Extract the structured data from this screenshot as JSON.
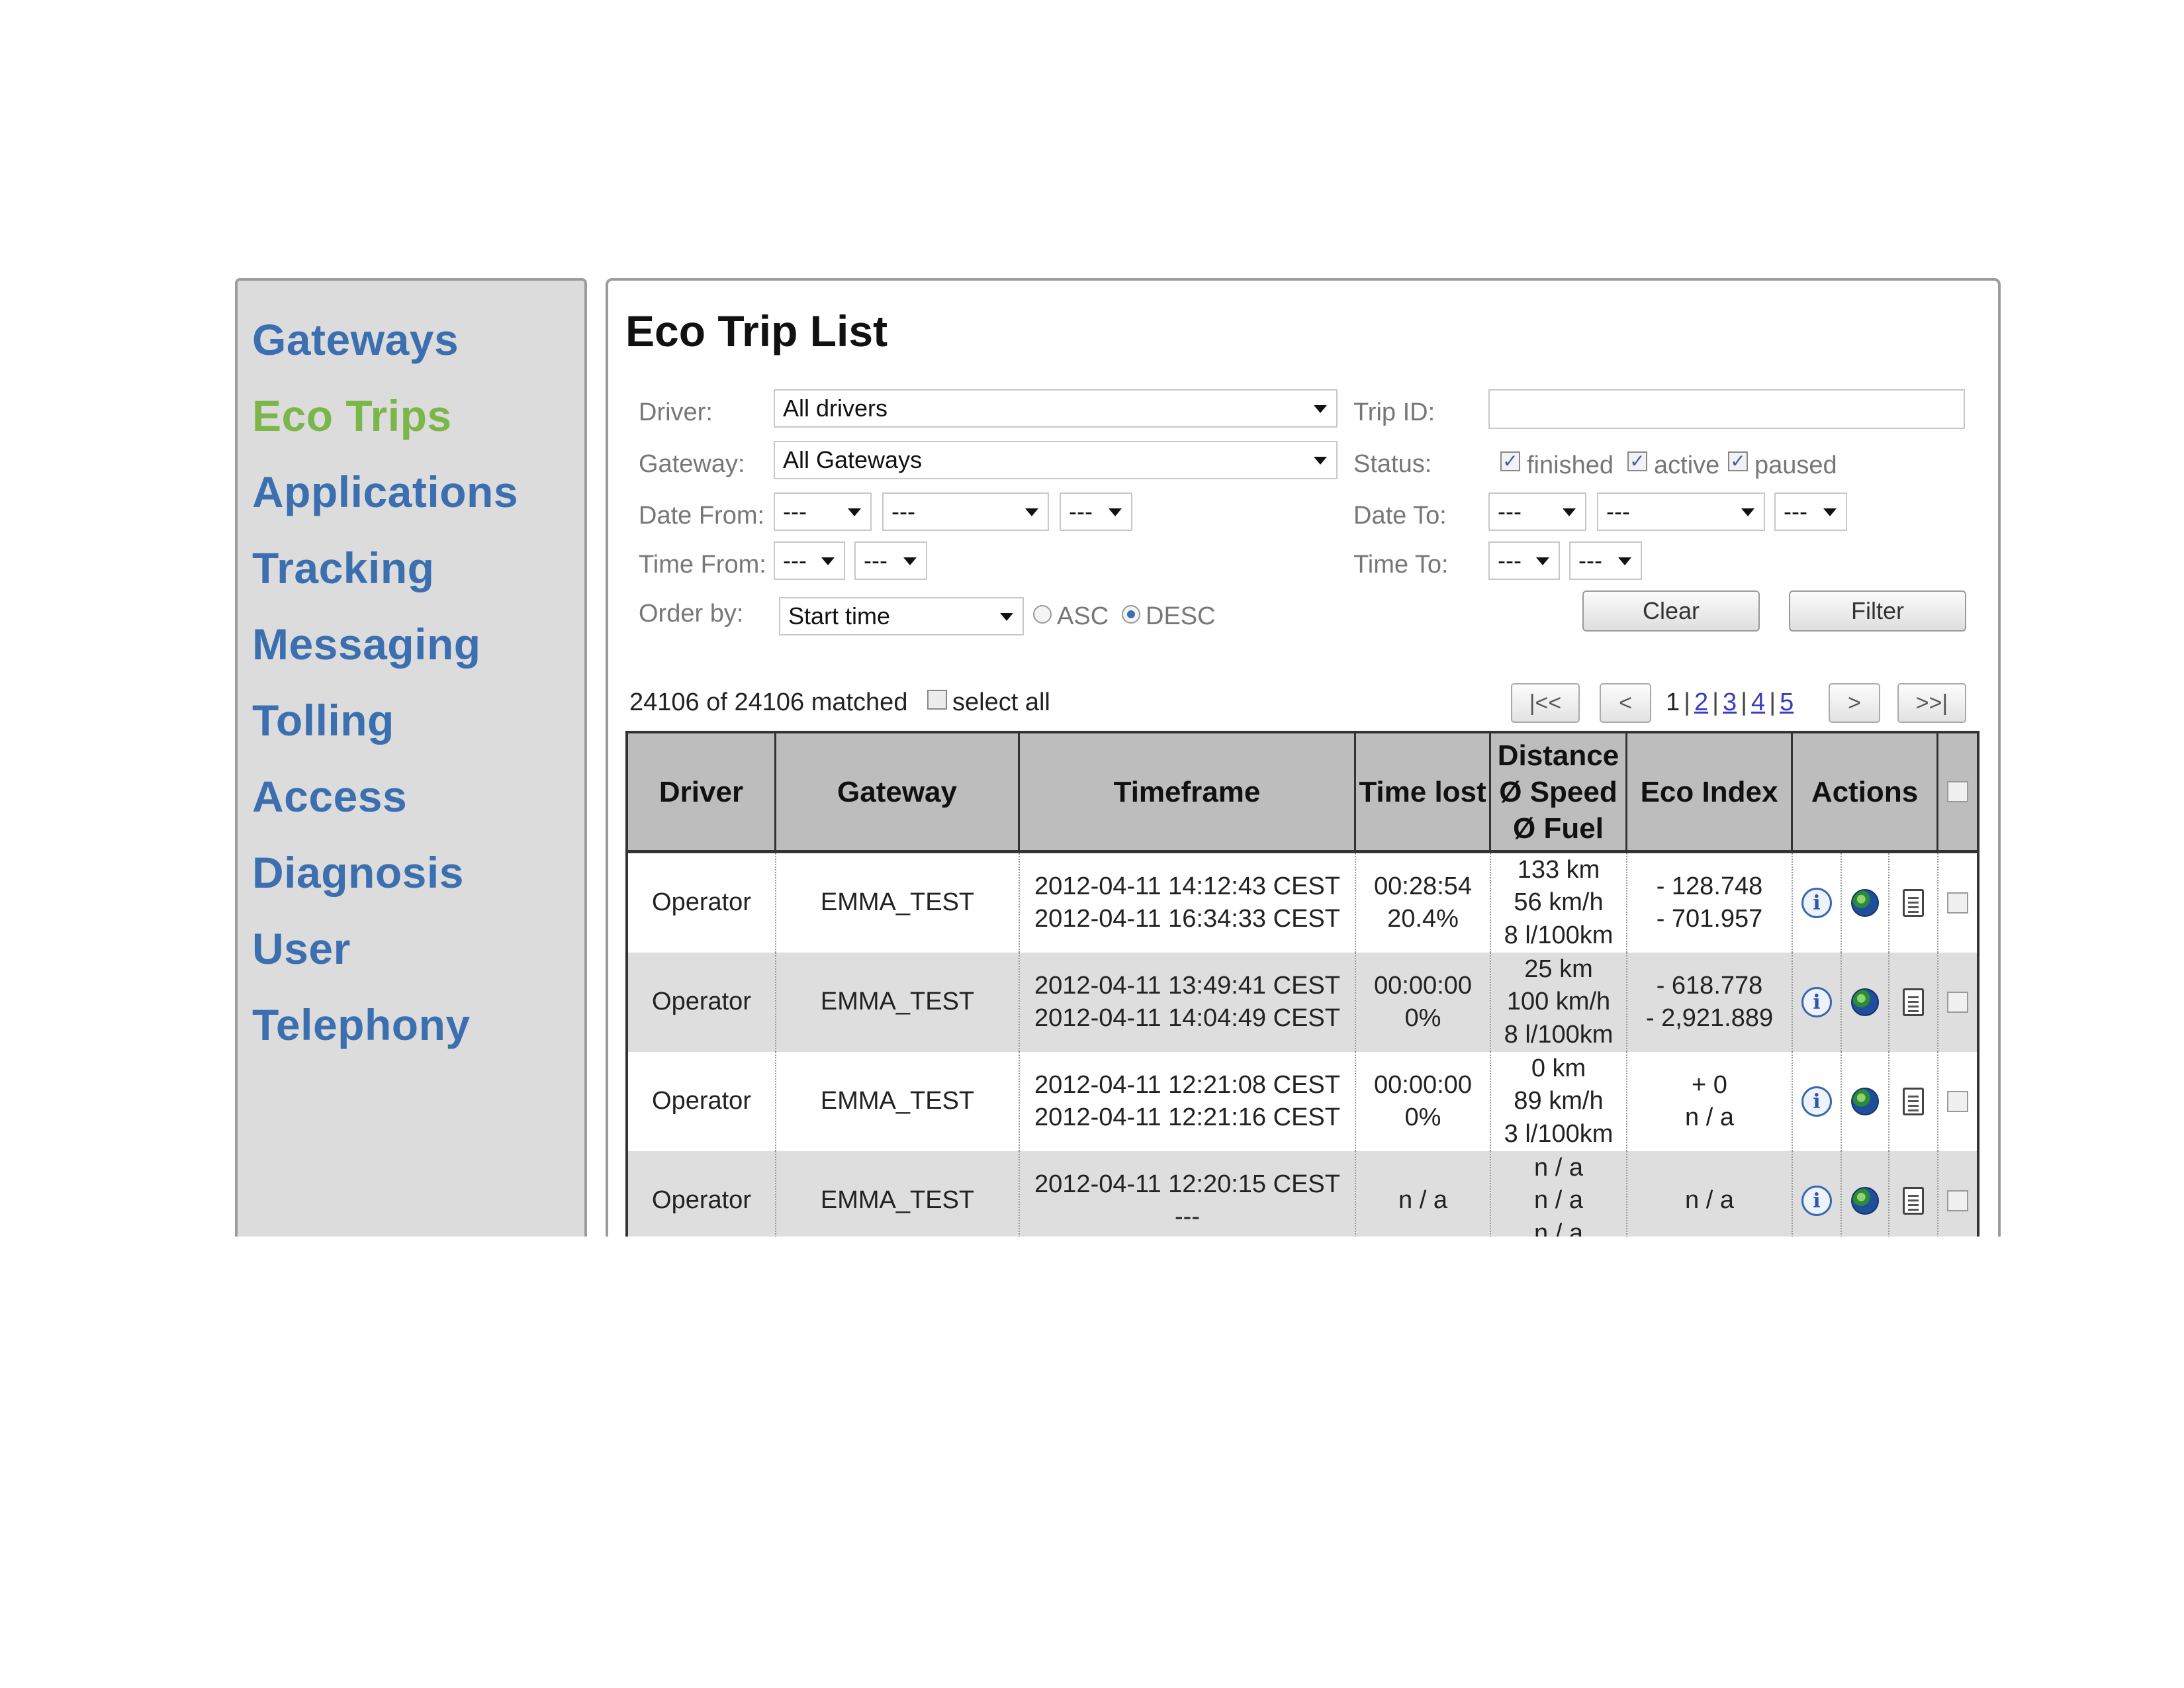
{
  "sidebar": {
    "items": [
      {
        "label": "Gateways",
        "active": false
      },
      {
        "label": "Eco Trips",
        "active": true
      },
      {
        "label": "Applications",
        "active": false
      },
      {
        "label": "Tracking",
        "active": false
      },
      {
        "label": "Messaging",
        "active": false
      },
      {
        "label": "Tolling",
        "active": false
      },
      {
        "label": "Access",
        "active": false
      },
      {
        "label": "Diagnosis",
        "active": false
      },
      {
        "label": "User",
        "active": false
      },
      {
        "label": "Telephony",
        "active": false
      }
    ]
  },
  "page": {
    "title": "Eco Trip List"
  },
  "filters": {
    "driver_label": "Driver:",
    "driver_value": "All drivers",
    "gateway_label": "Gateway:",
    "gateway_value": "All Gateways",
    "date_from_label": "Date From:",
    "date_from_values": [
      "---",
      "---",
      "---"
    ],
    "time_from_label": "Time From:",
    "time_from_values": [
      "---",
      "---"
    ],
    "order_by_label": "Order by:",
    "order_by_value": "Start time",
    "asc_label": "ASC",
    "desc_label": "DESC",
    "order_direction": "DESC",
    "trip_id_label": "Trip ID:",
    "trip_id_value": "",
    "status_label": "Status:",
    "status_options": [
      {
        "label": "finished",
        "checked": true
      },
      {
        "label": "active",
        "checked": true
      },
      {
        "label": "paused",
        "checked": true
      }
    ],
    "date_to_label": "Date To:",
    "date_to_values": [
      "---",
      "---",
      "---"
    ],
    "time_to_label": "Time To:",
    "time_to_values": [
      "---",
      "---"
    ],
    "clear_label": "Clear",
    "filter_label": "Filter"
  },
  "results": {
    "matched_text": "24106 of 24106 matched",
    "select_all_label": "select all",
    "select_all_checked": false
  },
  "pagination": {
    "first": "|<<",
    "prev": "<",
    "next": ">",
    "last": ">>|",
    "current_page": "1",
    "pages": [
      "2",
      "3",
      "4",
      "5"
    ],
    "separator": "|"
  },
  "table": {
    "headers": {
      "driver": "Driver",
      "gateway": "Gateway",
      "timeframe": "Timeframe",
      "time_lost": "Time lost",
      "distance_lines": [
        "Distance",
        "Ø Speed",
        "Ø Fuel"
      ],
      "eco_index": "Eco Index",
      "actions": "Actions"
    },
    "rows": [
      {
        "driver": "Operator",
        "gateway": "EMMA_TEST",
        "start": "2012-04-11 14:12:43 CEST",
        "end": "2012-04-11 16:34:33 CEST",
        "time_lost": "00:28:54",
        "time_lost_pct": "20.4%",
        "distance": "133 km",
        "speed": "56 km/h",
        "fuel": "8 l/100km",
        "eco1": "- 128.748",
        "eco2": "- 701.957"
      },
      {
        "driver": "Operator",
        "gateway": "EMMA_TEST",
        "start": "2012-04-11 13:49:41 CEST",
        "end": "2012-04-11 14:04:49 CEST",
        "time_lost": "00:00:00",
        "time_lost_pct": "0%",
        "distance": "25 km",
        "speed": "100 km/h",
        "fuel": "8 l/100km",
        "eco1": "- 618.778",
        "eco2": "- 2,921.889"
      },
      {
        "driver": "Operator",
        "gateway": "EMMA_TEST",
        "start": "2012-04-11 12:21:08 CEST",
        "end": "2012-04-11 12:21:16 CEST",
        "time_lost": "00:00:00",
        "time_lost_pct": "0%",
        "distance": "0 km",
        "speed": "89 km/h",
        "fuel": "3 l/100km",
        "eco1": "+ 0",
        "eco2": "n / a"
      },
      {
        "driver": "Operator",
        "gateway": "EMMA_TEST",
        "start": "2012-04-11 12:20:15 CEST",
        "end": "---",
        "time_lost": "n / a",
        "time_lost_pct": "",
        "distance": "n / a",
        "speed": "n / a",
        "fuel": "n / a",
        "eco1": "n / a",
        "eco2": ""
      }
    ]
  },
  "icons": {
    "info": "info-icon",
    "map": "globe-icon",
    "report": "document-icon"
  },
  "colors": {
    "nav_link": "#3b6fb0",
    "nav_active": "#7ab648",
    "header_bg": "#bdbdbd",
    "row_alt_bg": "#dedede"
  }
}
